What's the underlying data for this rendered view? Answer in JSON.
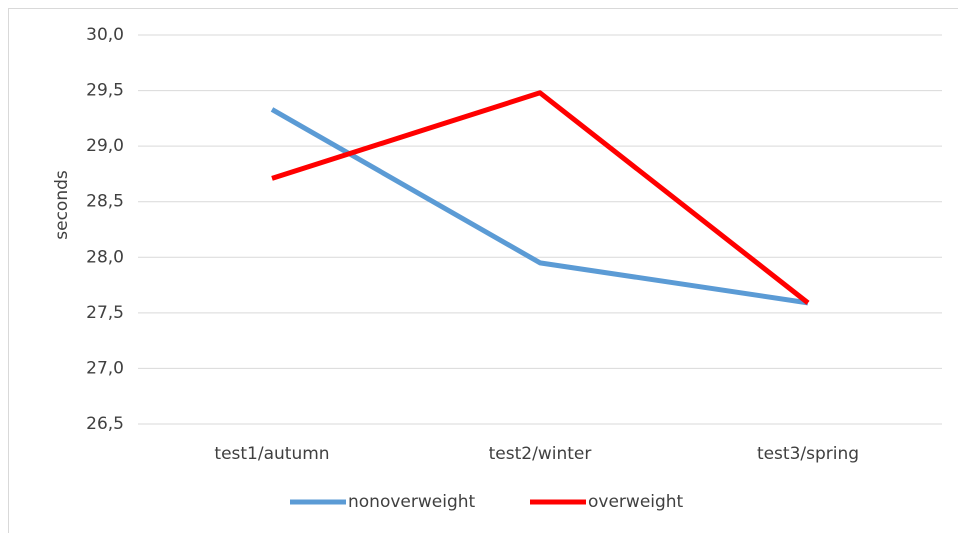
{
  "chart_data": {
    "type": "line",
    "y_label": "seconds",
    "categories": [
      "test1/autumn",
      "test2/winter",
      "test3/spring"
    ],
    "series": [
      {
        "name": "nonoverweight",
        "color": "#5b9bd5",
        "values": [
          29.33,
          27.95,
          27.59
        ]
      },
      {
        "name": "overweight",
        "color": "#ff0000",
        "values": [
          28.71,
          29.48,
          27.59
        ]
      }
    ],
    "ylim": [
      26.5,
      30.0
    ],
    "yticks": [
      {
        "value": 26.5,
        "label": "26,5"
      },
      {
        "value": 27.0,
        "label": "27,0"
      },
      {
        "value": 27.5,
        "label": "27,5"
      },
      {
        "value": 28.0,
        "label": "28,0"
      },
      {
        "value": 28.5,
        "label": "28,5"
      },
      {
        "value": 29.0,
        "label": "29,0"
      },
      {
        "value": 29.5,
        "label": "29,5"
      },
      {
        "value": 30.0,
        "label": "30,0"
      }
    ],
    "grid": true,
    "legend": "bottom"
  }
}
